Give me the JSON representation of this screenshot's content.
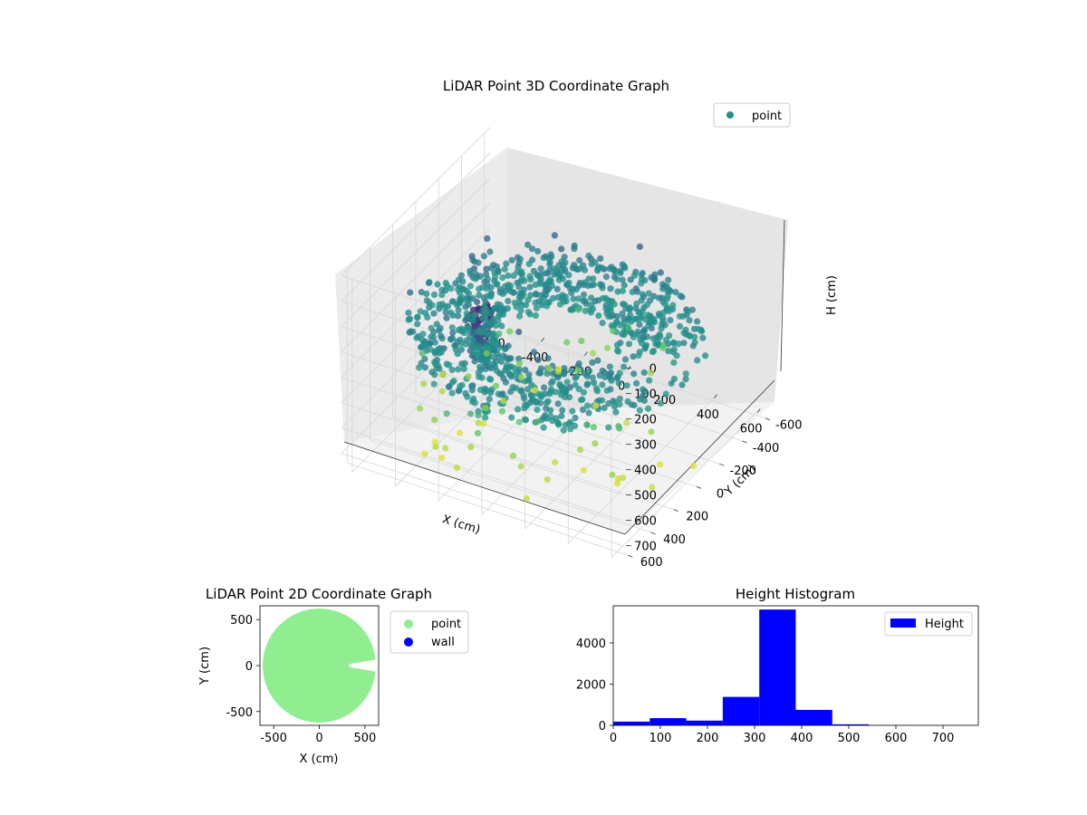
{
  "chart_data": [
    {
      "type": "scatter",
      "projection": "3d",
      "title": "LiDAR Point 3D Coordinate Graph",
      "xlabel": "X (cm)",
      "ylabel": "Y (cm)",
      "zlabel": "H (cm)",
      "xlim": [
        -650,
        650
      ],
      "ylim": [
        -650,
        650
      ],
      "zlim": [
        760,
        0
      ],
      "z_inverted": true,
      "xticks": [
        -600,
        -400,
        -200,
        0,
        200,
        400,
        600
      ],
      "yticks": [
        -600,
        -400,
        -200,
        0,
        200,
        400,
        600
      ],
      "zticks": [
        0,
        100,
        200,
        300,
        400,
        500,
        600,
        700
      ],
      "grid": true,
      "colormap": "viridis",
      "legend": {
        "placement": "upper-right",
        "entries": [
          {
            "label": "point",
            "color": "#21918c"
          }
        ]
      },
      "series": [
        {
          "name": "point",
          "description": "ring-shaped point cloud (radius ~250-620 cm, open gap toward +X near Y~0), heights mostly 300-400 cm, a dense column cluster near the back",
          "points_xyz_sample": [
            [
              600,
              0,
              350
            ],
            [
              520,
              300,
              340
            ],
            [
              300,
              520,
              345
            ],
            [
              0,
              600,
              350
            ],
            [
              -300,
              520,
              340
            ],
            [
              -520,
              300,
              345
            ],
            [
              -600,
              0,
              350
            ],
            [
              -520,
              -300,
              340
            ],
            [
              -300,
              -520,
              345
            ],
            [
              0,
              -600,
              350
            ],
            [
              300,
              -520,
              340
            ],
            [
              520,
              -300,
              345
            ],
            [
              450,
              80,
              330
            ],
            [
              -200,
              450,
              180
            ],
            [
              -150,
              420,
              120
            ],
            [
              -120,
              430,
              90
            ],
            [
              200,
              -450,
              640
            ],
            [
              550,
              200,
              700
            ],
            [
              -400,
              -350,
              600
            ],
            [
              100,
              350,
              500
            ]
          ]
        }
      ]
    },
    {
      "type": "scatter",
      "title": "LiDAR Point 2D Coordinate Graph",
      "xlabel": "X (cm)",
      "ylabel": "Y (cm)",
      "xlim": [
        -650,
        650
      ],
      "ylim": [
        -650,
        650
      ],
      "xticks": [
        -500,
        0,
        500
      ],
      "yticks": [
        -500,
        0,
        500
      ],
      "legend": {
        "placement": "outside-right",
        "entries": [
          {
            "label": "point",
            "color": "#90ee90"
          },
          {
            "label": "wall",
            "color": "#0000ff"
          }
        ]
      },
      "series": [
        {
          "name": "point",
          "color": "#90ee90",
          "description": "filled disc of points, radius ~620 cm, with a notch toward +X around Y~0"
        },
        {
          "name": "wall",
          "color": "#0000ff",
          "points": []
        }
      ]
    },
    {
      "type": "bar",
      "subtype": "histogram",
      "title": "Height Histogram",
      "xlim": [
        0,
        775
      ],
      "ylim": [
        0,
        5800
      ],
      "xticks": [
        0,
        100,
        200,
        300,
        400,
        500,
        600,
        700
      ],
      "yticks": [
        0,
        2000,
        4000
      ],
      "bin_edges": [
        0,
        77.5,
        155,
        232.5,
        310,
        387.5,
        465,
        542.5,
        620,
        697.5,
        775
      ],
      "values": [
        180,
        350,
        230,
        1380,
        5620,
        750,
        50,
        8,
        4,
        2
      ],
      "color": "#0000ff",
      "legend": {
        "placement": "upper-right",
        "entries": [
          {
            "label": "Height",
            "color": "#0000ff"
          }
        ]
      },
      "series": [
        {
          "name": "Height",
          "values": [
            180,
            350,
            230,
            1380,
            5620,
            750,
            50,
            8,
            4,
            2
          ]
        }
      ]
    }
  ]
}
